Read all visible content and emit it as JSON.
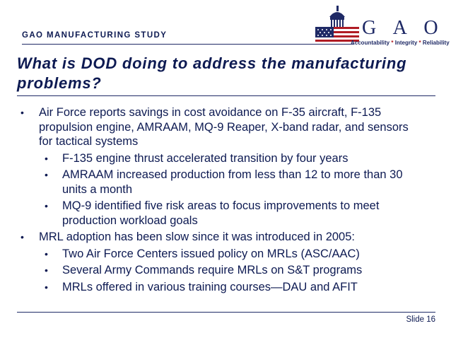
{
  "header": {
    "study_label": "GAO MANUFACTURING STUDY",
    "logo": {
      "name": "G A O",
      "tagline_parts": [
        "Accountability",
        "Integrity",
        "Reliability"
      ],
      "tagline_separator": "*",
      "colors": {
        "navy": "#1f2a66",
        "red": "#b01c24"
      }
    }
  },
  "slide": {
    "title": "What is DOD doing to address the manufacturing problems?",
    "bullets": [
      {
        "text": "Air Force reports savings in cost avoidance on F-35 aircraft, F-135 propulsion engine, AMRAAM, MQ-9 Reaper, X-band radar, and sensors for tactical systems",
        "sub": [
          "F-135 engine thrust accelerated transition by four years",
          "AMRAAM increased production from less than 12 to more than 30 units a month",
          "MQ-9 identified five risk areas to focus improvements to meet production workload goals"
        ]
      },
      {
        "text": "MRL adoption has been slow since it was introduced in 2005:",
        "sub": [
          "Two Air Force Centers issued policy on MRLs (ASC/AAC)",
          "Several Army Commands require MRLs on S&T programs",
          "MRLs offered in various training courses—DAU and AFIT"
        ]
      }
    ],
    "bullet_glyph": "•"
  },
  "footer": {
    "slide_number": "Slide 16"
  }
}
